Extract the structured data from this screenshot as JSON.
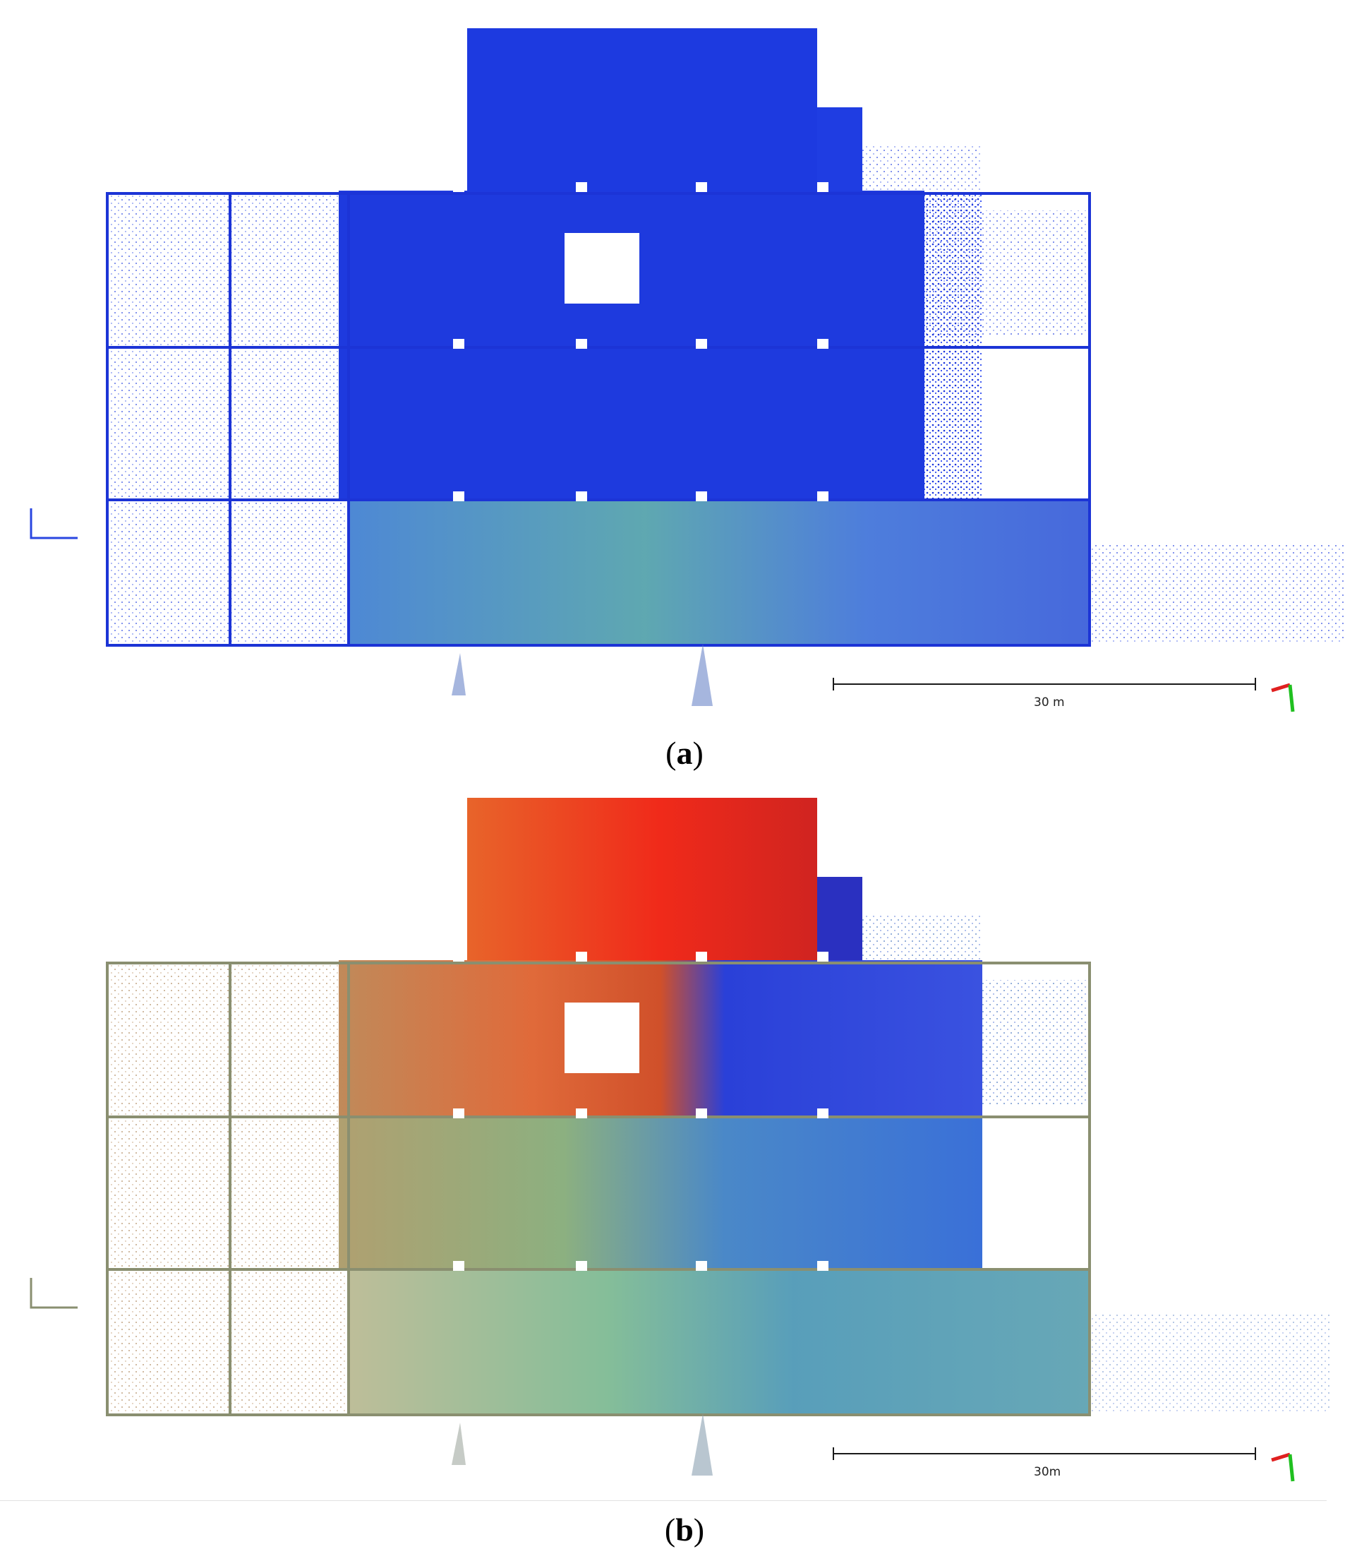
{
  "panels": [
    {
      "id": "a",
      "caption_open": "(",
      "caption_letter": "a",
      "caption_close": ")",
      "scale_label": "30 m",
      "colors": {
        "primary": "#1f3be0",
        "secondary": "#4a8fb0",
        "light": "#6f9cc0"
      }
    },
    {
      "id": "b",
      "caption_open": "(",
      "caption_letter": "b",
      "caption_close": ")",
      "scale_label": "30m",
      "colors": {
        "red": "#f02a1a",
        "orange": "#e8642a",
        "tan": "#c08a5a",
        "green": "#7ab8a0",
        "teal": "#4a96b4",
        "blue": "#2a4ee6",
        "navy": "#2030c8"
      }
    }
  ]
}
